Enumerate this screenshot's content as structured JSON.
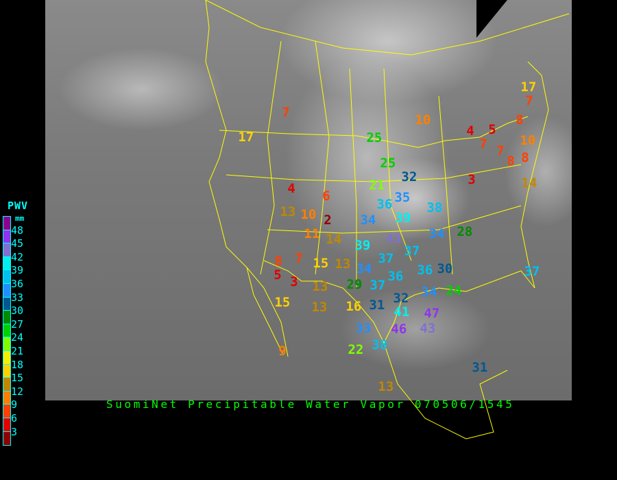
{
  "title": "SuomiNet Precipitable Water Vapor 070506/1545",
  "legend": {
    "title": "PWV",
    "unit": "mm",
    "labels": [
      "48",
      "45",
      "42",
      "39",
      "36",
      "33",
      "30",
      "27",
      "24",
      "21",
      "18",
      "15",
      "12",
      "9",
      "6",
      "3"
    ],
    "colors": [
      "#8b008f",
      "#9033f0",
      "#8070d0",
      "#00f0f0",
      "#00c0f0",
      "#2090ff",
      "#005890",
      "#008c00",
      "#00d000",
      "#80ff00",
      "#f0f000",
      "#ffd000",
      "#c08800",
      "#ff8000",
      "#ff4000",
      "#e00000",
      "#900000"
    ]
  },
  "map": {
    "border_color": "#ffff00",
    "background": "GOES infrared satellite image"
  },
  "stations": [
    17,
    7,
    8,
    10,
    8,
    10,
    4,
    5,
    7,
    7,
    8,
    3,
    14,
    7,
    17,
    25,
    25,
    32,
    35,
    21,
    4,
    13,
    6,
    2,
    10,
    39,
    38,
    34,
    28,
    34,
    36,
    43,
    39,
    14,
    11,
    37,
    37,
    13,
    15,
    34,
    37,
    36,
    36,
    30,
    29,
    24,
    37,
    8,
    7,
    5,
    3,
    13,
    13,
    16,
    31,
    32,
    34,
    33,
    41,
    46,
    47,
    38,
    43,
    22,
    15,
    9,
    13,
    31
  ]
}
